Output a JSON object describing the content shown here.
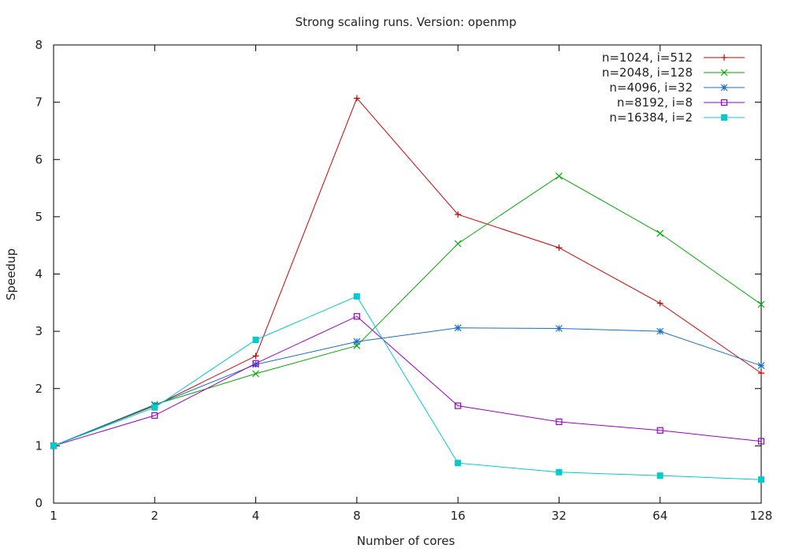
{
  "chart_data": {
    "type": "line",
    "title": "Strong scaling runs. Version: openmp",
    "xlabel": "Number of cores",
    "ylabel": "Speedup",
    "x_scale": "log2",
    "x": [
      1,
      2,
      4,
      8,
      16,
      32,
      64,
      128
    ],
    "x_tick_labels": [
      "1",
      "2",
      "4",
      "8",
      "16",
      "32",
      "64",
      "128"
    ],
    "ylim": [
      0,
      8
    ],
    "y_ticks": [
      0,
      1,
      2,
      3,
      4,
      5,
      6,
      7,
      8
    ],
    "grid": false,
    "legend_position": "top-right",
    "series": [
      {
        "name": "n=1024, i=512",
        "color": "#cc0000",
        "marker": "plus",
        "values": [
          1.0,
          1.7,
          2.57,
          7.07,
          5.04,
          4.46,
          3.49,
          2.27
        ]
      },
      {
        "name": "n=2048, i=128",
        "color": "#00aa00",
        "marker": "cross",
        "values": [
          1.0,
          1.72,
          2.26,
          2.75,
          4.53,
          5.71,
          4.71,
          3.47
        ]
      },
      {
        "name": "n=4096, i=32",
        "color": "#1a6fc4",
        "marker": "star",
        "values": [
          1.0,
          1.71,
          2.42,
          2.82,
          3.06,
          3.05,
          3.0,
          2.4
        ]
      },
      {
        "name": "n=8192, i=8",
        "color": "#9900cc",
        "marker": "open-square",
        "values": [
          1.0,
          1.53,
          2.44,
          3.26,
          1.7,
          1.42,
          1.27,
          1.08
        ]
      },
      {
        "name": "n=16384, i=2",
        "color": "#00cccc",
        "marker": "filled-square",
        "values": [
          1.0,
          1.67,
          2.85,
          3.61,
          0.7,
          0.54,
          0.48,
          0.41
        ]
      }
    ]
  }
}
